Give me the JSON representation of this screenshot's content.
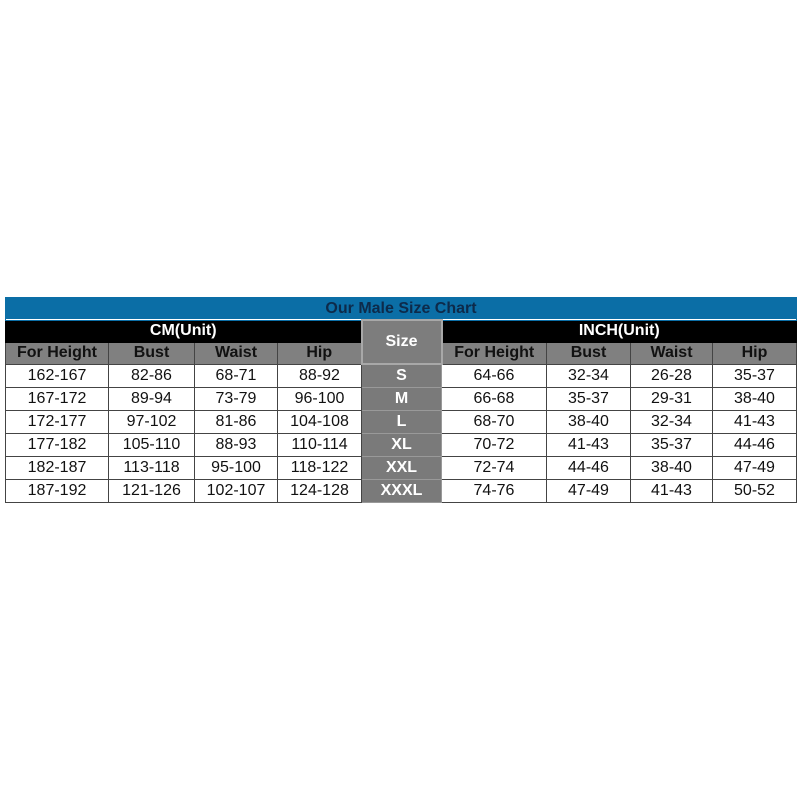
{
  "title": "Our Male Size Chart",
  "cm_unit_label": "CM(Unit)",
  "inch_unit_label": "INCH(Unit)",
  "size_label": "Size",
  "columns": [
    "For Height",
    "Bust",
    "Waist",
    "Hip"
  ],
  "colors": {
    "title_bar": "#0b6ea6",
    "unit_bar": "#000000",
    "header": "#808080",
    "size_column": "#7a7a7a"
  },
  "rows": [
    {
      "cm": [
        "162-167",
        "82-86",
        "68-71",
        "88-92"
      ],
      "size": "S",
      "inch": [
        "64-66",
        "32-34",
        "26-28",
        "35-37"
      ]
    },
    {
      "cm": [
        "167-172",
        "89-94",
        "73-79",
        "96-100"
      ],
      "size": "M",
      "inch": [
        "66-68",
        "35-37",
        "29-31",
        "38-40"
      ]
    },
    {
      "cm": [
        "172-177",
        "97-102",
        "81-86",
        "104-108"
      ],
      "size": "L",
      "inch": [
        "68-70",
        "38-40",
        "32-34",
        "41-43"
      ]
    },
    {
      "cm": [
        "177-182",
        "105-110",
        "88-93",
        "110-114"
      ],
      "size": "XL",
      "inch": [
        "70-72",
        "41-43",
        "35-37",
        "44-46"
      ]
    },
    {
      "cm": [
        "182-187",
        "113-118",
        "95-100",
        "118-122"
      ],
      "size": "XXL",
      "inch": [
        "72-74",
        "44-46",
        "38-40",
        "47-49"
      ]
    },
    {
      "cm": [
        "187-192",
        "121-126",
        "102-107",
        "124-128"
      ],
      "size": "XXXL",
      "inch": [
        "74-76",
        "47-49",
        "41-43",
        "50-52"
      ]
    }
  ]
}
